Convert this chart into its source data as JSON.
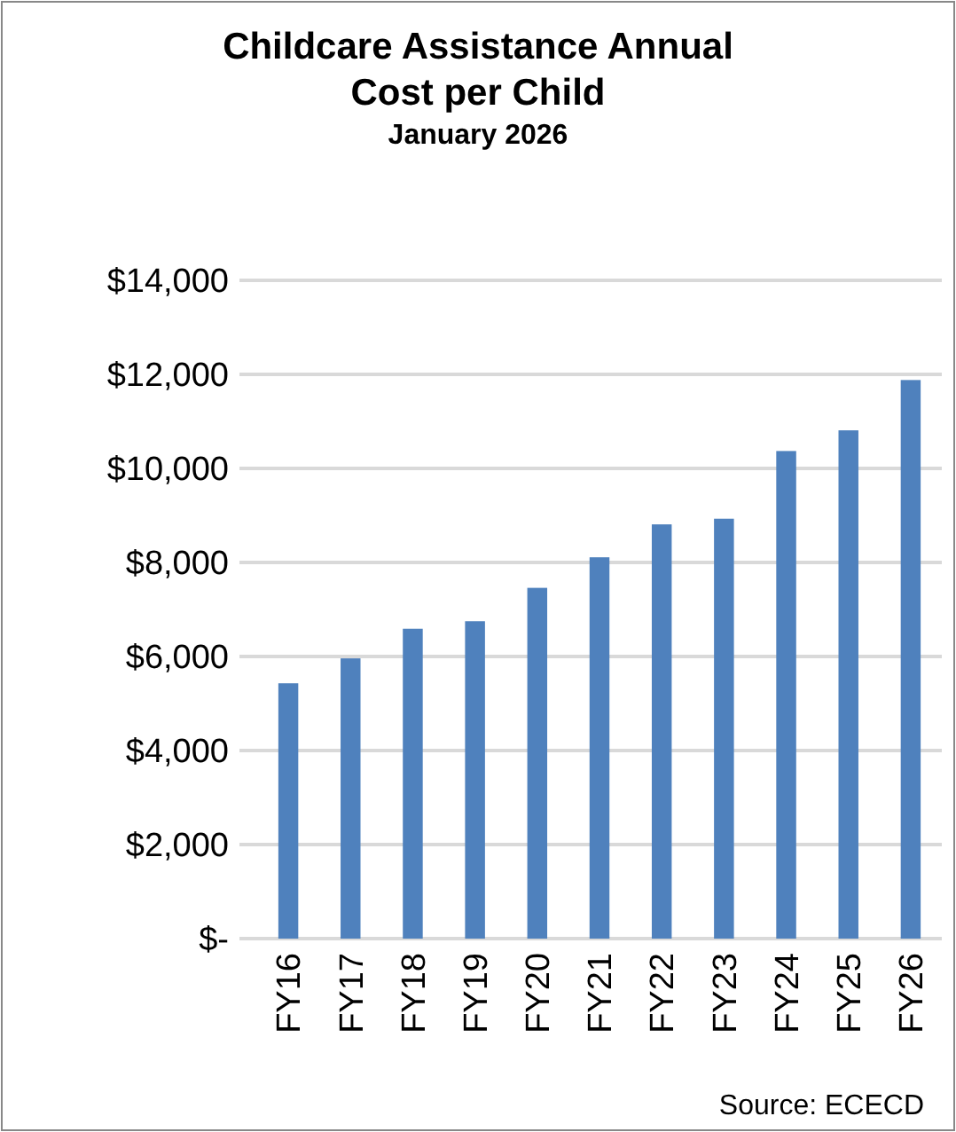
{
  "chart_data": {
    "type": "bar",
    "title": "Childcare Assistance Annual Cost per Child",
    "subtitle": "January 2026",
    "categories": [
      "FY16",
      "FY17",
      "FY18",
      "FY19",
      "FY20",
      "FY21",
      "FY22",
      "FY23",
      "FY24",
      "FY25",
      "FY26"
    ],
    "values": [
      5430,
      5960,
      6590,
      6750,
      7460,
      8110,
      8810,
      8930,
      10370,
      10810,
      11880
    ],
    "color": "#4f81bd",
    "ylim": [
      0,
      14000
    ],
    "yticks": [
      {
        "value": 0,
        "label": "$-"
      },
      {
        "value": 2000,
        "label": "$2,000"
      },
      {
        "value": 4000,
        "label": "$4,000"
      },
      {
        "value": 6000,
        "label": "$6,000"
      },
      {
        "value": 8000,
        "label": "$8,000"
      },
      {
        "value": 10000,
        "label": "$10,000"
      },
      {
        "value": 12000,
        "label": "$12,000"
      },
      {
        "value": 14000,
        "label": "$14,000"
      }
    ],
    "grid": "y",
    "annotations": [
      "Source: ECECD"
    ]
  }
}
